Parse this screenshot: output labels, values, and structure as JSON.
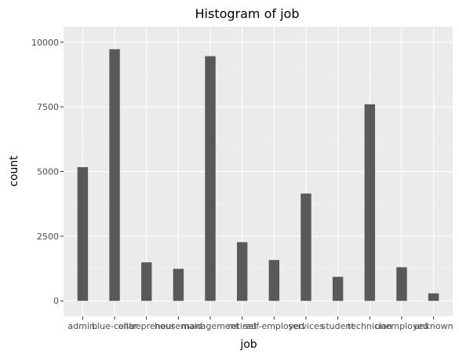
{
  "chart_data": {
    "type": "bar",
    "title": "Histogram of job",
    "xlabel": "job",
    "ylabel": "count",
    "categories": [
      "admin.",
      "blue-collar",
      "entrepreneur",
      "housemaid",
      "management",
      "retired",
      "self-employed",
      "services",
      "student",
      "technician",
      "unemployed",
      "unknown"
    ],
    "values": [
      5170,
      9730,
      1490,
      1240,
      9460,
      2270,
      1580,
      4150,
      930,
      7600,
      1300,
      290
    ],
    "yticks": [
      0,
      2500,
      5000,
      7500,
      10000
    ],
    "ytick_labels": [
      "0",
      "2500",
      "5000",
      "7500",
      "10000"
    ],
    "ylim": [
      -600,
      10600
    ],
    "grid": true,
    "colors": {
      "bar": "#595959",
      "panel": "#ebebeb",
      "grid_major": "#ffffff"
    }
  }
}
